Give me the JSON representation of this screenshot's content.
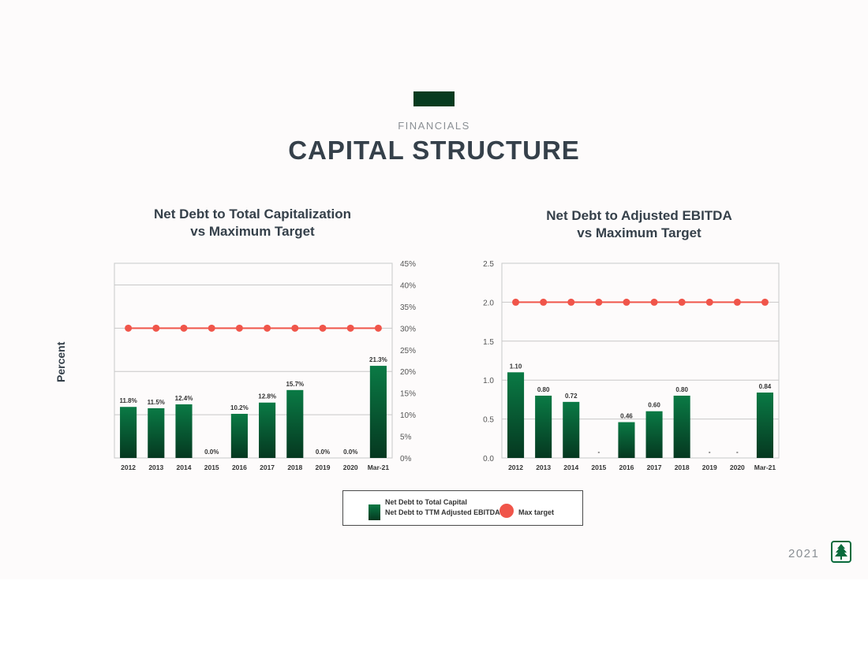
{
  "header": {
    "kicker": "FINANCIALS",
    "title": "CAPITAL STRUCTURE"
  },
  "y_side_label": "Percent",
  "colors": {
    "bar_top": "#0a7a45",
    "bar_bottom": "#053820",
    "target_line": "#f0554a",
    "title_text": "#35404a",
    "accent_bar": "#073b1f"
  },
  "chart_data": [
    {
      "type": "bar",
      "title_lines": [
        "Net Debt to Total Capitalization",
        "vs Maximum Target"
      ],
      "categories": [
        "2012",
        "2013",
        "2014",
        "2015",
        "2016",
        "2017",
        "2018",
        "2019",
        "2020",
        "Mar-21"
      ],
      "values": [
        11.8,
        11.5,
        12.4,
        0.0,
        10.2,
        12.8,
        15.7,
        0.0,
        0.0,
        21.3
      ],
      "data_labels": [
        "11.8%",
        "11.5%",
        "12.4%",
        "0.0%",
        "10.2%",
        "12.8%",
        "15.7%",
        "0.0%",
        "0.0%",
        "21.3%"
      ],
      "target_values": [
        30,
        30,
        30,
        30,
        30,
        30,
        30,
        30,
        30,
        30
      ],
      "ylim": [
        0,
        45
      ],
      "yticks": [
        0,
        5,
        10,
        15,
        20,
        25,
        30,
        35,
        40,
        45
      ],
      "ytick_labels": [
        "0%",
        "5%",
        "10%",
        "15%",
        "20%",
        "25%",
        "30%",
        "35%",
        "40%",
        "45%"
      ],
      "y_axis_side": "right",
      "gridlines_at": [
        10,
        20,
        30,
        40
      ],
      "grid": true
    },
    {
      "type": "bar",
      "title_lines": [
        "Net Debt to Adjusted EBITDA",
        "vs Maximum Target"
      ],
      "categories": [
        "2012",
        "2013",
        "2014",
        "2015",
        "2016",
        "2017",
        "2018",
        "2019",
        "2020",
        "Mar-21"
      ],
      "values": [
        1.1,
        0.8,
        0.72,
        0,
        0.46,
        0.6,
        0.8,
        0,
        0,
        0.84
      ],
      "data_labels": [
        "1.10",
        "0.80",
        "0.72",
        "-",
        "0.46",
        "0.60",
        "0.80",
        "-",
        "-",
        "0.84"
      ],
      "target_values": [
        2.0,
        2.0,
        2.0,
        2.0,
        2.0,
        2.0,
        2.0,
        2.0,
        2.0,
        2.0
      ],
      "ylim": [
        0,
        2.5
      ],
      "yticks": [
        0,
        0.5,
        1.0,
        1.5,
        2.0,
        2.5
      ],
      "ytick_labels": [
        "0.0",
        "0.5",
        "1.0",
        "1.5",
        "2.0",
        "2.5"
      ],
      "y_axis_side": "left",
      "gridlines_at": [
        0.5,
        1.0,
        1.5,
        2.0
      ],
      "grid": true
    }
  ],
  "legend": {
    "series_bar_1": "Net Debt to Total Capital",
    "series_bar_2": "Net Debt to TTM Adjusted EBITDA",
    "series_line": "Max target"
  },
  "footer": {
    "year": "2021",
    "logo_icon": "tree-logo-icon"
  }
}
